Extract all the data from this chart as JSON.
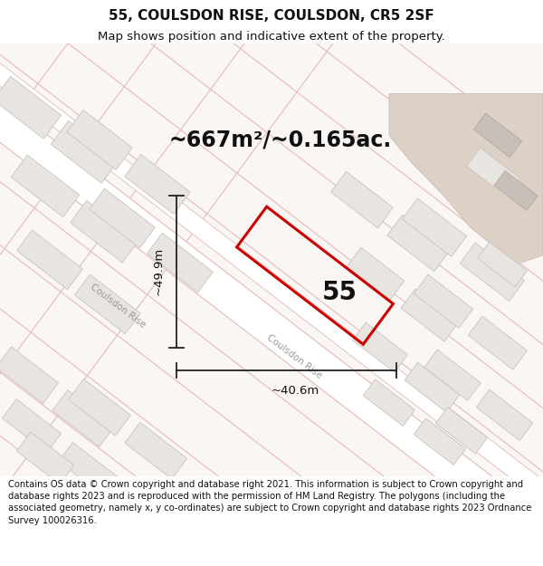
{
  "title": "55, COULSDON RISE, COULSDON, CR5 2SF",
  "subtitle": "Map shows position and indicative extent of the property.",
  "area_text": "~667m²/~0.165ac.",
  "label_55": "55",
  "dim_vertical": "~49.9m",
  "dim_horizontal": "~40.6m",
  "street_label1": "Coulsdon Rise",
  "street_label2": "Coulsdon Rise",
  "footer": "Contains OS data © Crown copyright and database right 2021. This information is subject to Crown copyright and database rights 2023 and is reproduced with the permission of HM Land Registry. The polygons (including the associated geometry, namely x, y co-ordinates) are subject to Crown copyright and database rights 2023 Ordnance Survey 100026316.",
  "map_bg": "#f9f6f4",
  "road_fill": "#ffffff",
  "road_edge": "#e8c0c0",
  "building_fill": "#e8e4e0",
  "building_edge": "#c8c4c0",
  "tan_area_fill": "#ddd0c4",
  "tan_area_edge": "#c8bdb5",
  "plot_color": "#cc0000",
  "plot_linewidth": 2.2,
  "dim_color": "#222222",
  "text_color": "#111111",
  "street_color": "#999999",
  "title_fontsize": 11,
  "subtitle_fontsize": 9.5,
  "area_fontsize": 17,
  "label_fontsize": 20,
  "dim_fontsize": 9.5,
  "street_fontsize": 7.5,
  "footer_fontsize": 7.2
}
